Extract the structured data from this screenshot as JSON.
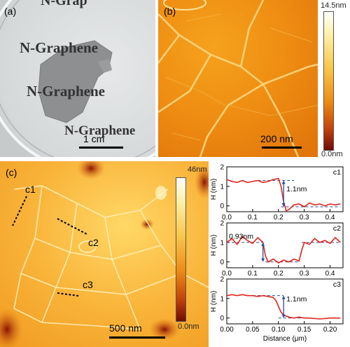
{
  "panel_a": {
    "label": "(a)",
    "texts": [
      "N-Grap",
      "N-Graphene",
      "N-Graphene",
      "N-Graphene"
    ],
    "scalebar": "1 cm"
  },
  "panel_b": {
    "label": "(b)",
    "scalebar": "200 nm",
    "colorbar_max": "14.5nm",
    "colorbar_min": "0.0nm"
  },
  "panel_c": {
    "label": "(c)",
    "scalebar": "500 nm",
    "colorbar_max": "46nm",
    "colorbar_min": "0.0nm",
    "line_labels": [
      "c1",
      "c2",
      "c3"
    ]
  },
  "profiles": {
    "ylabel": "H (nm)",
    "xlabel": "Distance (μm)"
  },
  "chart_data": [
    {
      "type": "line",
      "title": "c1",
      "ylabel": "H (nm)",
      "xlim": [
        0,
        0.45
      ],
      "ylim": [
        -0.3,
        2
      ],
      "xticks": [
        "0.0",
        "0.1",
        "0.2",
        "0.3",
        "0.4"
      ],
      "yticks": [
        "0",
        "1",
        "2"
      ],
      "annotation": "1.1nm",
      "series": [
        {
          "x": [
            0.0,
            0.02,
            0.04,
            0.06,
            0.08,
            0.1,
            0.12,
            0.14,
            0.16,
            0.18,
            0.2,
            0.21,
            0.22,
            0.23,
            0.24,
            0.26,
            0.28,
            0.3,
            0.32,
            0.34,
            0.36,
            0.38,
            0.4,
            0.42,
            0.44
          ],
          "y": [
            1.35,
            1.25,
            1.2,
            1.3,
            1.2,
            1.25,
            1.3,
            1.2,
            1.25,
            1.35,
            1.4,
            1.0,
            0.2,
            -0.25,
            -0.2,
            0.05,
            0.1,
            -0.05,
            0.15,
            0.05,
            0.1,
            0.0,
            0.1,
            0.05,
            0.1
          ]
        }
      ]
    },
    {
      "type": "line",
      "title": "c2",
      "ylabel": "H (nm)",
      "xlim": [
        0,
        0.45
      ],
      "ylim": [
        -0.3,
        2
      ],
      "xticks": [
        "0.0",
        "0.1",
        "0.2",
        "0.3",
        "0.4"
      ],
      "yticks": [
        "0",
        "1",
        "2"
      ],
      "annotation": "0.93nm",
      "series": [
        {
          "x": [
            0.0,
            0.02,
            0.04,
            0.06,
            0.08,
            0.1,
            0.12,
            0.14,
            0.15,
            0.16,
            0.18,
            0.2,
            0.22,
            0.24,
            0.26,
            0.28,
            0.29,
            0.3,
            0.32,
            0.34,
            0.36,
            0.38,
            0.4,
            0.42,
            0.44
          ],
          "y": [
            1.0,
            1.2,
            0.9,
            1.3,
            1.1,
            0.95,
            1.25,
            1.0,
            0.3,
            0.0,
            0.15,
            -0.05,
            0.1,
            0.0,
            0.15,
            0.05,
            0.6,
            1.0,
            0.9,
            1.2,
            1.0,
            1.1,
            0.95,
            1.25,
            1.0
          ]
        }
      ]
    },
    {
      "type": "line",
      "title": "c3",
      "ylabel": "H (nm)",
      "xlabel": "Distance (μm)",
      "xlim": [
        0,
        0.225
      ],
      "ylim": [
        -0.3,
        2
      ],
      "xticks": [
        "0.00",
        "0.05",
        "0.10",
        "0.15",
        "0.20"
      ],
      "yticks": [
        "0",
        "1",
        "2"
      ],
      "annotation": "1.1nm",
      "series": [
        {
          "x": [
            0.0,
            0.01,
            0.02,
            0.03,
            0.04,
            0.05,
            0.06,
            0.07,
            0.08,
            0.09,
            0.095,
            0.1,
            0.105,
            0.11,
            0.12,
            0.13,
            0.14,
            0.15,
            0.16,
            0.18,
            0.2,
            0.22
          ],
          "y": [
            1.15,
            1.2,
            1.15,
            1.2,
            1.15,
            1.15,
            1.1,
            1.15,
            1.1,
            1.05,
            0.9,
            0.6,
            0.3,
            0.15,
            0.05,
            0.0,
            0.05,
            0.0,
            0.0,
            -0.05,
            0.0,
            0.0
          ]
        }
      ]
    }
  ]
}
